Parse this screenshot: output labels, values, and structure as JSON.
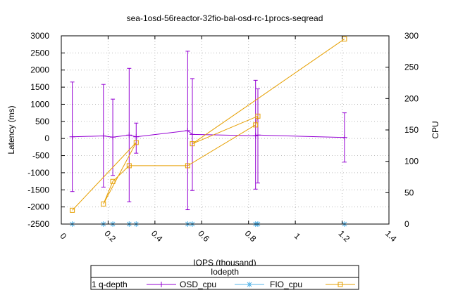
{
  "chart_data": {
    "type": "line",
    "title": "sea-1osd-56reactor-32fio-bal-osd-rc-1procs-seqread",
    "xlabel": "IOPS (thousand)",
    "ylabel": "Latency (ms)",
    "y2label": "CPU",
    "xlim": [
      0,
      1.4
    ],
    "ylim": [
      -2500,
      3000
    ],
    "y2lim": [
      0,
      300
    ],
    "x_ticks": [
      "0",
      "0.2",
      "0.4",
      "0.6",
      "0.8",
      "1",
      "1.2",
      "1.4"
    ],
    "y_ticks": [
      "3000",
      "2500",
      "2000",
      "1500",
      "1000",
      "500",
      "0",
      "-500",
      "-1000",
      "-1500",
      "-2000",
      "-2500"
    ],
    "y2_ticks": [
      "300",
      "250",
      "200",
      "150",
      "100",
      "50",
      "0"
    ],
    "grid": true,
    "legend_title": "Iodepth",
    "legend_position": "bottom",
    "series": [
      {
        "name": "1 q-depth",
        "axis": "y",
        "color": "#9400d3",
        "marker": "plus",
        "points": [
          {
            "x": 0.047,
            "y": 50,
            "low": -1550,
            "high": 1650
          },
          {
            "x": 0.18,
            "y": 75,
            "low": -1420,
            "high": 1580
          },
          {
            "x": 0.22,
            "y": 40,
            "low": -1080,
            "high": 1150
          },
          {
            "x": 0.29,
            "y": 100,
            "low": -1850,
            "high": 2050
          },
          {
            "x": 0.32,
            "y": 50,
            "low": -430,
            "high": 450
          },
          {
            "x": 0.54,
            "y": 230,
            "low": -2080,
            "high": 2550
          },
          {
            "x": 0.56,
            "y": 120,
            "low": -1520,
            "high": 1750
          },
          {
            "x": 0.83,
            "y": 80,
            "low": -1480,
            "high": 1700
          },
          {
            "x": 0.84,
            "y": 100,
            "low": -1300,
            "high": 1450
          },
          {
            "x": 1.21,
            "y": 30,
            "low": -690,
            "high": 750
          }
        ]
      },
      {
        "name": "OSD_cpu",
        "axis": "y2",
        "color": "#56b4e9",
        "marker": "star",
        "points": [
          {
            "x": 0.047,
            "y": 0
          },
          {
            "x": 0.18,
            "y": 0
          },
          {
            "x": 0.22,
            "y": 0
          },
          {
            "x": 0.29,
            "y": 0
          },
          {
            "x": 0.32,
            "y": 0
          },
          {
            "x": 0.54,
            "y": 0
          },
          {
            "x": 0.56,
            "y": 0
          },
          {
            "x": 0.83,
            "y": 0
          },
          {
            "x": 0.84,
            "y": 0
          },
          {
            "x": 1.21,
            "y": 0
          }
        ]
      },
      {
        "name": "FIO_cpu",
        "axis": "y2",
        "color": "#e69f00",
        "marker": "square",
        "points": [
          {
            "x": 0.047,
            "y": 22
          },
          {
            "x": 0.32,
            "y": 130
          },
          {
            "x": 0.18,
            "y": 32
          },
          {
            "x": 0.22,
            "y": 68
          },
          {
            "x": 0.29,
            "y": 93
          },
          {
            "x": 0.54,
            "y": 93
          },
          {
            "x": 0.83,
            "y": 158
          },
          {
            "x": 0.84,
            "y": 172
          },
          {
            "x": 0.56,
            "y": 128
          },
          {
            "x": 1.21,
            "y": 295
          }
        ]
      }
    ]
  }
}
